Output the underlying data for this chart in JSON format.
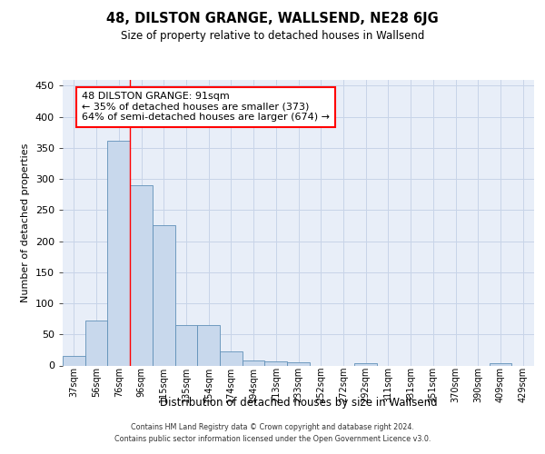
{
  "title": "48, DILSTON GRANGE, WALLSEND, NE28 6JG",
  "subtitle": "Size of property relative to detached houses in Wallsend",
  "xlabel": "Distribution of detached houses by size in Wallsend",
  "ylabel": "Number of detached properties",
  "categories": [
    "37sqm",
    "56sqm",
    "76sqm",
    "96sqm",
    "115sqm",
    "135sqm",
    "154sqm",
    "174sqm",
    "194sqm",
    "213sqm",
    "233sqm",
    "252sqm",
    "272sqm",
    "292sqm",
    "311sqm",
    "331sqm",
    "351sqm",
    "370sqm",
    "390sqm",
    "409sqm",
    "429sqm"
  ],
  "values": [
    15,
    73,
    362,
    290,
    225,
    65,
    65,
    22,
    8,
    6,
    5,
    0,
    0,
    4,
    0,
    0,
    0,
    0,
    0,
    3,
    0
  ],
  "bar_color": "#c8d8ec",
  "bar_edge_color": "#6090b8",
  "red_line_x": 3.0,
  "annotation_text": "48 DILSTON GRANGE: 91sqm\n← 35% of detached houses are smaller (373)\n64% of semi-detached houses are larger (674) →",
  "annotation_box_color": "white",
  "annotation_box_edge_color": "red",
  "ylim": [
    0,
    460
  ],
  "yticks": [
    0,
    50,
    100,
    150,
    200,
    250,
    300,
    350,
    400,
    450
  ],
  "grid_color": "#c8d4e8",
  "background_color": "#e8eef8",
  "footer_line1": "Contains HM Land Registry data © Crown copyright and database right 2024.",
  "footer_line2": "Contains public sector information licensed under the Open Government Licence v3.0."
}
